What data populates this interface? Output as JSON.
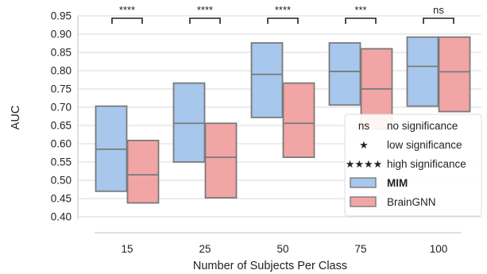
{
  "chart_data": {
    "type": "box",
    "xlabel": "Number of Subjects Per Class",
    "ylabel": "AUC",
    "categories": [
      "15",
      "25",
      "50",
      "75",
      "100"
    ],
    "ylim": [
      0.4,
      0.95
    ],
    "yticks": [
      "0.40",
      "0.45",
      "0.50",
      "0.55",
      "0.60",
      "0.65",
      "0.70",
      "0.75",
      "0.80",
      "0.85",
      "0.90",
      "0.95"
    ],
    "grid": "horizontal",
    "legend_position": "bottom-right",
    "series": [
      {
        "name": "MIM",
        "color": "#a7c7ec",
        "boxes": [
          {
            "q1": 0.47,
            "median": 0.585,
            "q3": 0.703
          },
          {
            "q1": 0.55,
            "median": 0.656,
            "q3": 0.766
          },
          {
            "q1": 0.672,
            "median": 0.79,
            "q3": 0.876
          },
          {
            "q1": 0.706,
            "median": 0.798,
            "q3": 0.876
          },
          {
            "q1": 0.703,
            "median": 0.812,
            "q3": 0.892
          }
        ]
      },
      {
        "name": "BrainGNN",
        "color": "#f2a5a5",
        "boxes": [
          {
            "q1": 0.438,
            "median": 0.515,
            "q3": 0.609
          },
          {
            "q1": 0.452,
            "median": 0.563,
            "q3": 0.656
          },
          {
            "q1": 0.563,
            "median": 0.656,
            "q3": 0.766
          },
          {
            "q1": 0.64,
            "median": 0.75,
            "q3": 0.86
          },
          {
            "q1": 0.688,
            "median": 0.797,
            "q3": 0.892
          }
        ]
      }
    ],
    "significance": [
      "****",
      "****",
      "****",
      "***",
      "ns"
    ],
    "legend": [
      {
        "symbol": "ns",
        "label": "no significance",
        "kind": "text"
      },
      {
        "symbol": "★",
        "label": "low significance",
        "kind": "text"
      },
      {
        "symbol": "★★★★",
        "label": "high significance",
        "kind": "text"
      },
      {
        "label": "MIM",
        "kind": "patch",
        "series": 0,
        "bold": true
      },
      {
        "label": "BrainGNN",
        "kind": "patch",
        "series": 1,
        "bold": false
      }
    ]
  }
}
